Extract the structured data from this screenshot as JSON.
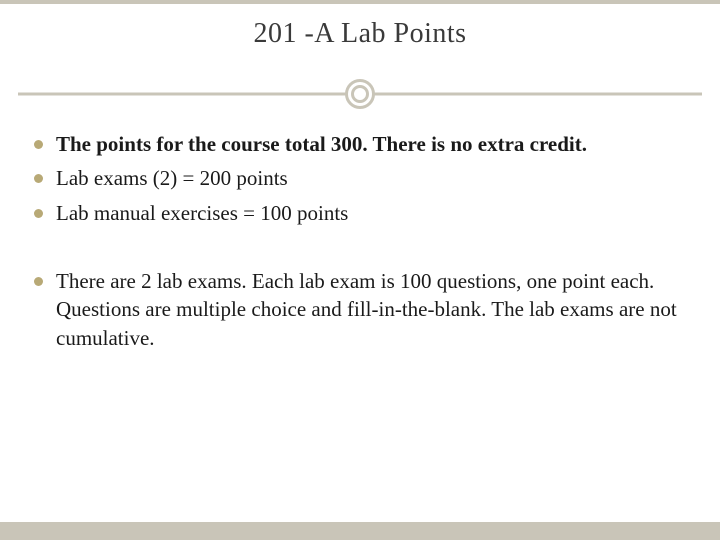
{
  "colors": {
    "accent_bar": "#c9c5b8",
    "bullet": "#b8a976",
    "title_text": "#3a3a3a",
    "body_text": "#1a1a1a",
    "background": "#ffffff"
  },
  "typography": {
    "title_fontsize": 28,
    "body_fontsize": 21,
    "font_family": "Georgia / serif"
  },
  "title": "201 -A Lab Points",
  "bullets": [
    {
      "text": "The points for the course total 300. There is no extra credit.",
      "bold": true
    },
    {
      "text": "Lab exams (2) = 200 points",
      "bold": false
    },
    {
      "text": "Lab manual exercises = 100 points",
      "bold": false
    }
  ],
  "bullets2": [
    {
      "text": "There are 2 lab exams. Each lab exam is 100 questions, one point each. Questions are multiple choice and fill-in-the-blank. The lab exams are not cumulative.",
      "bold": false
    }
  ]
}
